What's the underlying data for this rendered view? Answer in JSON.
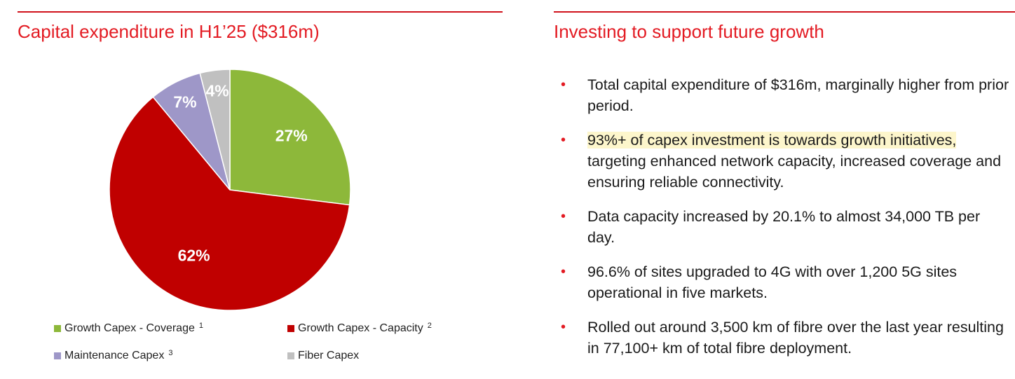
{
  "left_panel": {
    "title": "Capital expenditure in H1’25 ($316m)"
  },
  "right_panel": {
    "title": "Investing to support future growth",
    "bullets": [
      {
        "text": "Total capital expenditure of $316m, marginally higher from prior period."
      },
      {
        "highlight": "93%+ of capex investment is towards growth initiatives,",
        "text": " targeting enhanced network capacity, increased coverage and ensuring reliable connectivity."
      },
      {
        "text": "Data capacity increased by 20.1% to almost 34,000 TB per day."
      },
      {
        "text": "96.6% of sites upgraded to 4G with over 1,200 5G sites operational in five markets."
      },
      {
        "text": "Rolled out around 3,500 km of fibre over the last year resulting in 77,100+ km of total fibre deployment."
      }
    ],
    "bullet_marker": "•",
    "accent_color": "#e31b23",
    "highlight_color": "#fdf6cc"
  },
  "chart_data": {
    "type": "pie",
    "title": "Capital expenditure in H1’25 ($316m)",
    "slices": [
      {
        "name": "Growth Capex - Coverage",
        "footnote": "1",
        "value": 27,
        "label": "27%",
        "color": "#8db83a"
      },
      {
        "name": "Growth Capex - Capacity",
        "footnote": "2",
        "value": 62,
        "label": "62%",
        "color": "#c00000"
      },
      {
        "name": "Maintenance Capex",
        "footnote": "3",
        "value": 7,
        "label": "7%",
        "color": "#9e97c8"
      },
      {
        "name": "Fiber Capex",
        "footnote": "",
        "value": 4,
        "label": "4%",
        "color": "#c0c0c0"
      }
    ],
    "legend_position": "bottom"
  }
}
